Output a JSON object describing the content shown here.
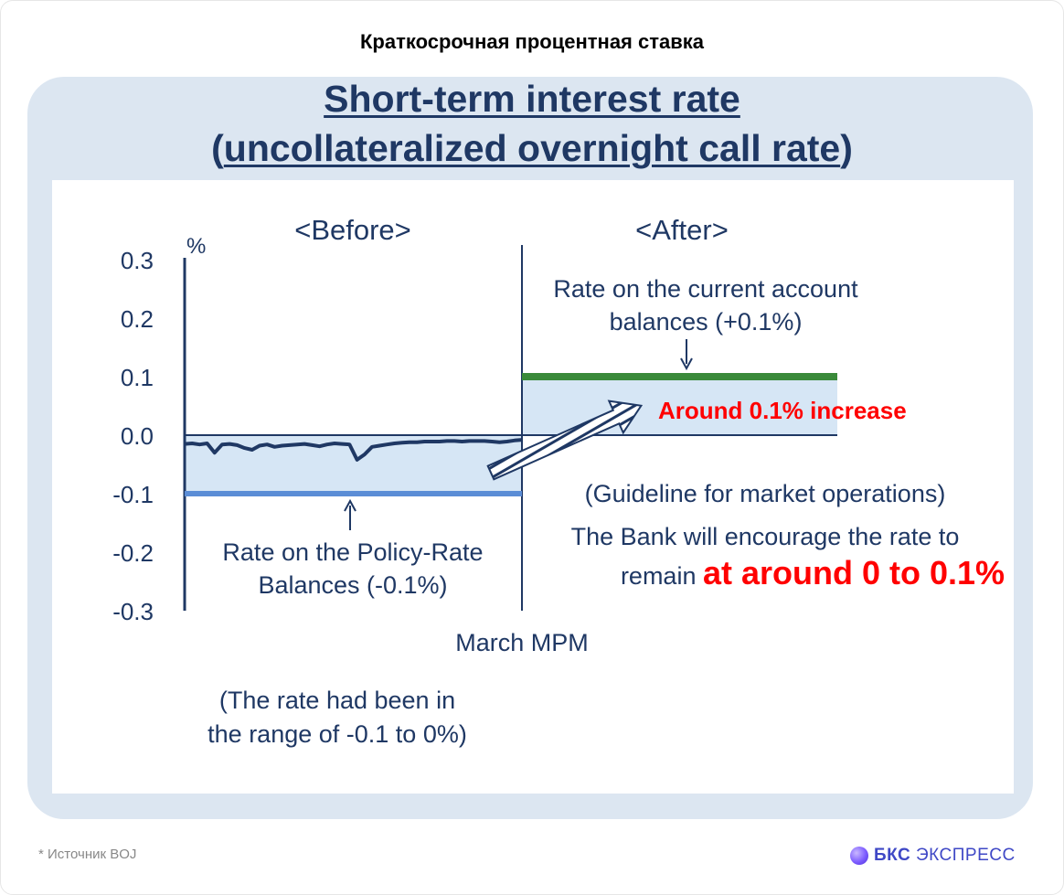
{
  "header": {
    "title": "Краткосрочная процентная ставка"
  },
  "slide": {
    "title_line1": "Short-term interest rate",
    "title_line2_open": "(",
    "title_line2": "uncollateralized overnight call rate",
    "title_line2_close": ")"
  },
  "chart_data": {
    "type": "line",
    "ylabel": "%",
    "ylim": [
      -0.3,
      0.3
    ],
    "yticks": [
      0.3,
      0.2,
      0.1,
      0.0,
      -0.1,
      -0.2,
      -0.3
    ],
    "ytick_labels": [
      "0.3",
      "0.2",
      "0.1",
      "0.0",
      "-0.1",
      "-0.2",
      "-0.3"
    ],
    "sections": {
      "before": "<Before>",
      "after": "<After>"
    },
    "divider_label": "March MPM",
    "series": [
      {
        "period": "before",
        "color": "#1f3864",
        "values": [
          -0.015,
          -0.014,
          -0.016,
          -0.014,
          -0.03,
          -0.016,
          -0.015,
          -0.017,
          -0.022,
          -0.025,
          -0.018,
          -0.016,
          -0.02,
          -0.018,
          -0.017,
          -0.016,
          -0.015,
          -0.017,
          -0.019,
          -0.016,
          -0.014,
          -0.015,
          -0.016,
          -0.042,
          -0.033,
          -0.02,
          -0.018,
          -0.016,
          -0.014,
          -0.013,
          -0.012,
          -0.012,
          -0.011,
          -0.011,
          -0.011,
          -0.01,
          -0.01,
          -0.011,
          -0.01,
          -0.01,
          -0.01,
          -0.011,
          -0.012,
          -0.011,
          -0.009,
          -0.008
        ]
      }
    ],
    "reference_lines": [
      {
        "name": "Rate on the Policy-Rate Balances",
        "value": -0.1,
        "period": "before",
        "color": "#5b8dd6"
      },
      {
        "name": "Rate on the current account balances",
        "value": 0.1,
        "period": "after",
        "color": "#3a8a3a"
      },
      {
        "value": 0.0,
        "period": "all",
        "color": "#1f3864"
      }
    ],
    "annotations": {
      "policy_rate": [
        "Rate on the Policy-Rate",
        "Balances (-0.1%)"
      ],
      "range_note": [
        "(The rate had been in",
        "the range of -0.1 to 0%)"
      ],
      "current_account": [
        "Rate on the current account",
        "balances (+0.1%)"
      ],
      "increase": "Around 0.1% increase",
      "guideline": "(Guideline for market operations)",
      "encourage_line1": "The Bank will encourage the rate to",
      "encourage_line2_prefix": "remain ",
      "encourage_line2_highlight": "at around 0 to 0.1%"
    },
    "colors": {
      "band_fill": "#d6e6f5",
      "highlight": "#ff0000",
      "text": "#1f3864"
    }
  },
  "footer": {
    "source": "*  Источник BOJ",
    "brand_bold": "БКС",
    "brand_rest": " ЭКСПРЕСС"
  }
}
